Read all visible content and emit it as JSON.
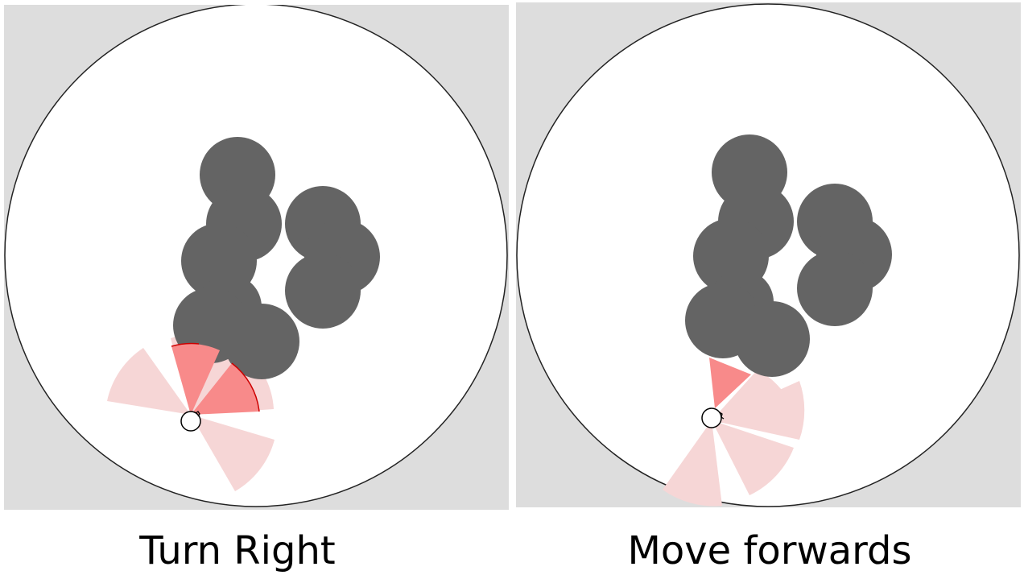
{
  "panels": [
    {
      "caption": "Turn Right"
    },
    {
      "caption": "Move forwards"
    }
  ],
  "colors": {
    "background": "#dddddd",
    "arena": "#ffffff",
    "obstacle": "#646464",
    "sensor_active": "#f88a8a",
    "sensor_inactive": "#f6d6d6",
    "sensor_edge": "#cc0000",
    "agent_outline": "#000000"
  }
}
